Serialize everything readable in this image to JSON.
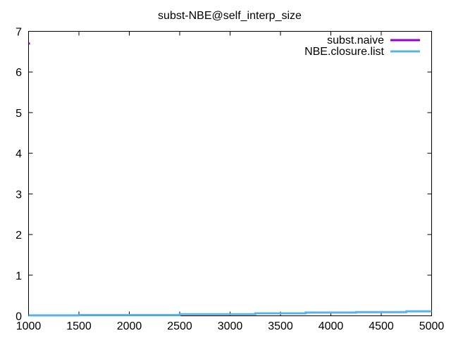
{
  "chart_data": {
    "type": "line",
    "title": "subst-NBE@self_interp_size",
    "xlabel": "",
    "ylabel": "",
    "xlim": [
      1000,
      5000
    ],
    "ylim": [
      0,
      7
    ],
    "xticks": [
      "1000",
      "1500",
      "2000",
      "2500",
      "3000",
      "3500",
      "4000",
      "4500",
      "5000"
    ],
    "yticks": [
      "0",
      "1",
      "2",
      "3",
      "4",
      "5",
      "6",
      "7"
    ],
    "grid": false,
    "legend_position": "top-right",
    "series": [
      {
        "name": "subst.naive",
        "color": "#9400d3",
        "x": [
          1000
        ],
        "y": [
          6.7
        ]
      },
      {
        "name": "NBE.closure.list",
        "color": "#56b4e9",
        "x": [
          1000,
          1500,
          1500,
          2500,
          2500,
          3250,
          3250,
          3750,
          3750,
          4250,
          4250,
          4750,
          4750,
          5000
        ],
        "y": [
          0.01,
          0.01,
          0.02,
          0.02,
          0.04,
          0.04,
          0.06,
          0.06,
          0.08,
          0.08,
          0.09,
          0.09,
          0.11,
          0.11
        ]
      }
    ]
  }
}
